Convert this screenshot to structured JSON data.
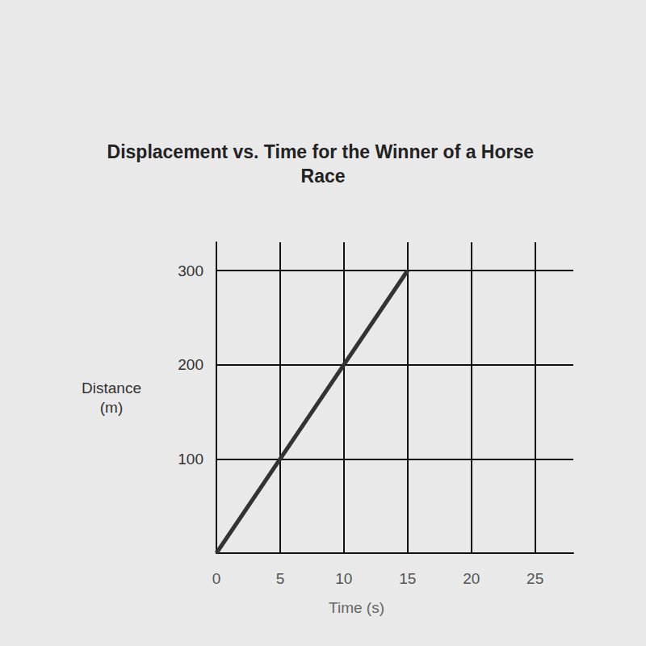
{
  "chart_data": {
    "type": "line",
    "title": "Displacement vs. Time for the Winner of a Horse Race",
    "x_label": "Time (s)",
    "y_label": "Distance (m)",
    "x": [
      0,
      15
    ],
    "values": [
      0,
      300
    ],
    "color": "#333333",
    "marker": "none",
    "xlim": [
      0,
      28
    ],
    "xticks": [
      0,
      5,
      10,
      15,
      20,
      25
    ],
    "ylim": [
      0,
      330
    ],
    "yticks": [
      100,
      200,
      300
    ],
    "grid": true
  }
}
